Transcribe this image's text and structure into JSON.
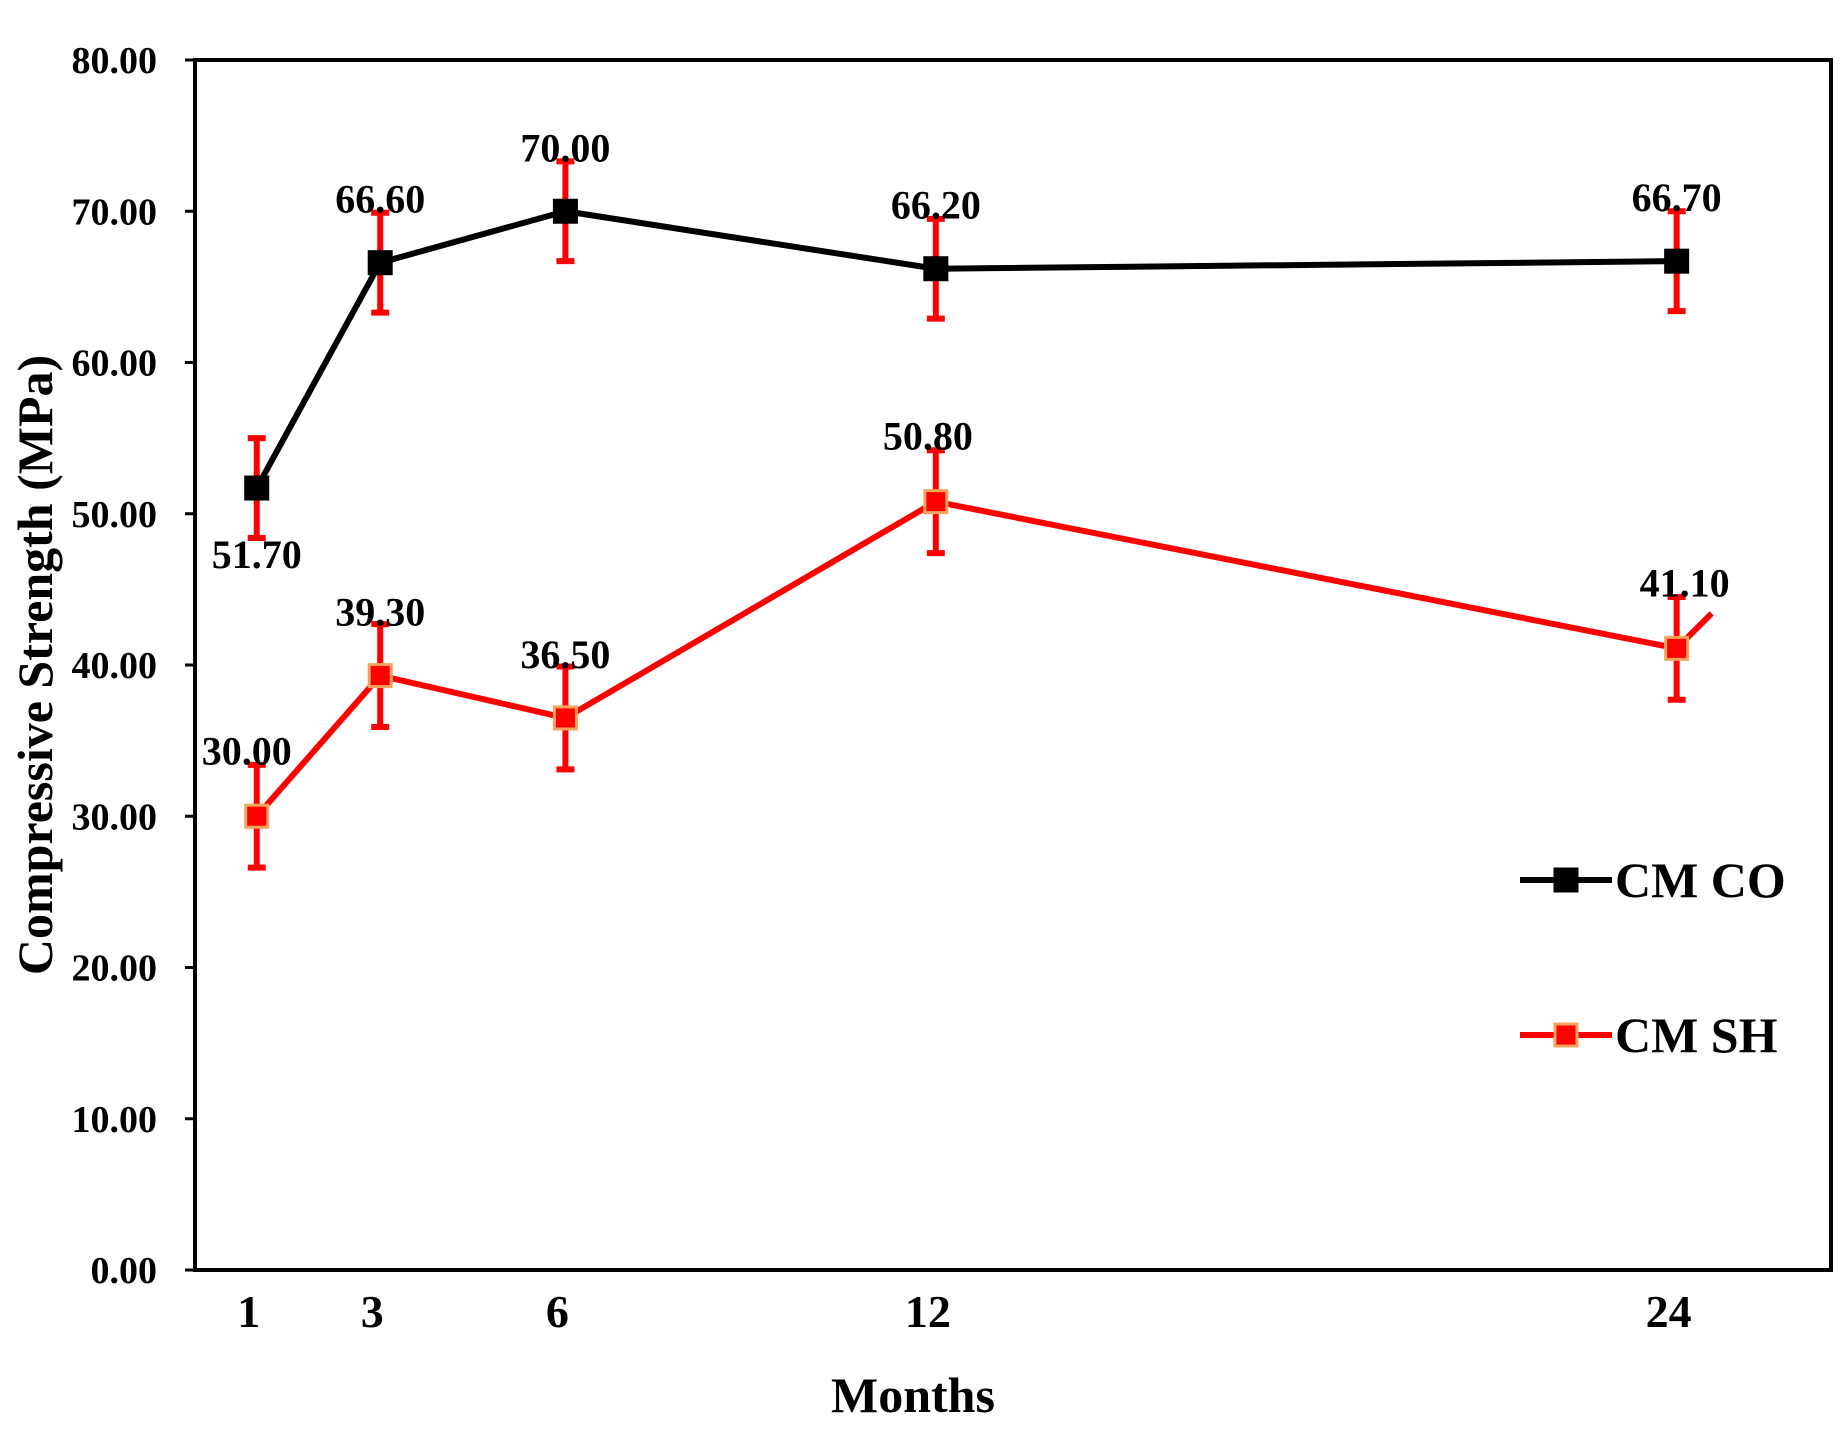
{
  "chart_data": {
    "type": "line",
    "title": "",
    "xlabel": "Months",
    "ylabel": "Compressive Strength (MPa)",
    "x": [
      1,
      3,
      6,
      12,
      24
    ],
    "x_tick_labels": [
      "1",
      "3",
      "6",
      "12",
      "24"
    ],
    "xlim": [
      0,
      26.5
    ],
    "ylim": [
      0,
      80
    ],
    "y_ticks": [
      0,
      10,
      20,
      30,
      40,
      50,
      60,
      70,
      80
    ],
    "y_tick_labels": [
      "0.00",
      "10.00",
      "20.00",
      "30.00",
      "40.00",
      "50.00",
      "60.00",
      "70.00",
      "80.00"
    ],
    "grid": false,
    "legend_position": "right",
    "series": [
      {
        "name": "CM CO",
        "color": "#000000",
        "marker_fill": "#000000",
        "marker_edge": "#000000",
        "values": [
          51.7,
          66.6,
          70.0,
          66.2,
          66.7
        ],
        "labels": [
          "51.70",
          "66.60",
          "70.00",
          "66.20",
          "66.70"
        ],
        "error": [
          3.3,
          3.3,
          3.3,
          3.3,
          3.3
        ]
      },
      {
        "name": "CM SH",
        "color": "#ff0000",
        "marker_fill": "#ff0000",
        "marker_edge": "#f7a35c",
        "values": [
          30.0,
          39.3,
          36.5,
          50.8,
          41.1
        ],
        "labels": [
          "30.00",
          "39.30",
          "36.50",
          "50.80",
          "41.10"
        ],
        "error": [
          3.4,
          3.4,
          3.4,
          3.4,
          3.4
        ]
      }
    ],
    "error_bar_color": "#ff0000"
  }
}
